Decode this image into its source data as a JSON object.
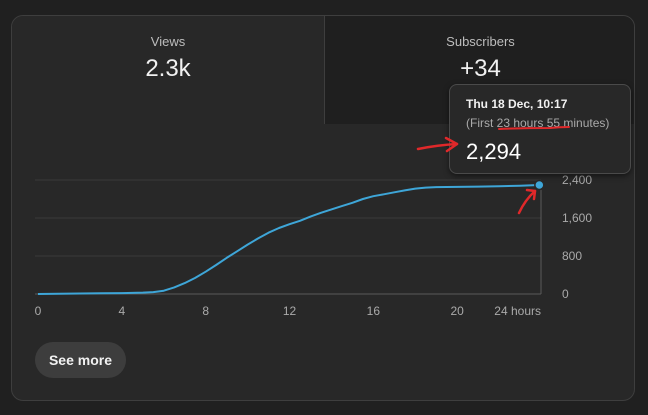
{
  "tabs": [
    {
      "label": "Views",
      "value": "2.3k"
    },
    {
      "label": "Subscribers",
      "value": "+34"
    }
  ],
  "tooltip": {
    "date": "Thu 18 Dec, 10:17",
    "subtitle_prefix": "(First ",
    "subtitle_hours": "23 hours",
    "subtitle_space": " ",
    "subtitle_minutes": "55",
    "subtitle_suffix": " minutes)",
    "value": "2,294"
  },
  "see_more_label": "See more",
  "colors": {
    "line": "#3ea6d8",
    "annotation": "#e0282a",
    "grid": "#3a3a3a"
  },
  "chart_data": {
    "type": "line",
    "x_tick_labels": [
      "0",
      "4",
      "8",
      "12",
      "16",
      "20",
      "24 hours"
    ],
    "y_tick_labels": [
      "0",
      "800",
      "1,600",
      "2,400"
    ],
    "xlim": [
      0,
      24
    ],
    "ylim": [
      0,
      2400
    ],
    "grid": true,
    "x": [
      0,
      1,
      2,
      3,
      4,
      5,
      5.5,
      6,
      6.5,
      7,
      7.5,
      8,
      8.5,
      9,
      9.5,
      10,
      10.5,
      11,
      11.5,
      12,
      12.5,
      13,
      13.5,
      14,
      14.5,
      15,
      15.5,
      16,
      16.5,
      17,
      17.5,
      18,
      18.5,
      19,
      20,
      21,
      22,
      23,
      23.92
    ],
    "values": [
      0,
      5,
      10,
      15,
      20,
      30,
      40,
      70,
      140,
      230,
      340,
      470,
      610,
      760,
      900,
      1040,
      1170,
      1290,
      1390,
      1470,
      1540,
      1630,
      1710,
      1780,
      1850,
      1920,
      2000,
      2060,
      2100,
      2140,
      2180,
      2220,
      2240,
      2250,
      2255,
      2262,
      2270,
      2280,
      2294
    ]
  }
}
